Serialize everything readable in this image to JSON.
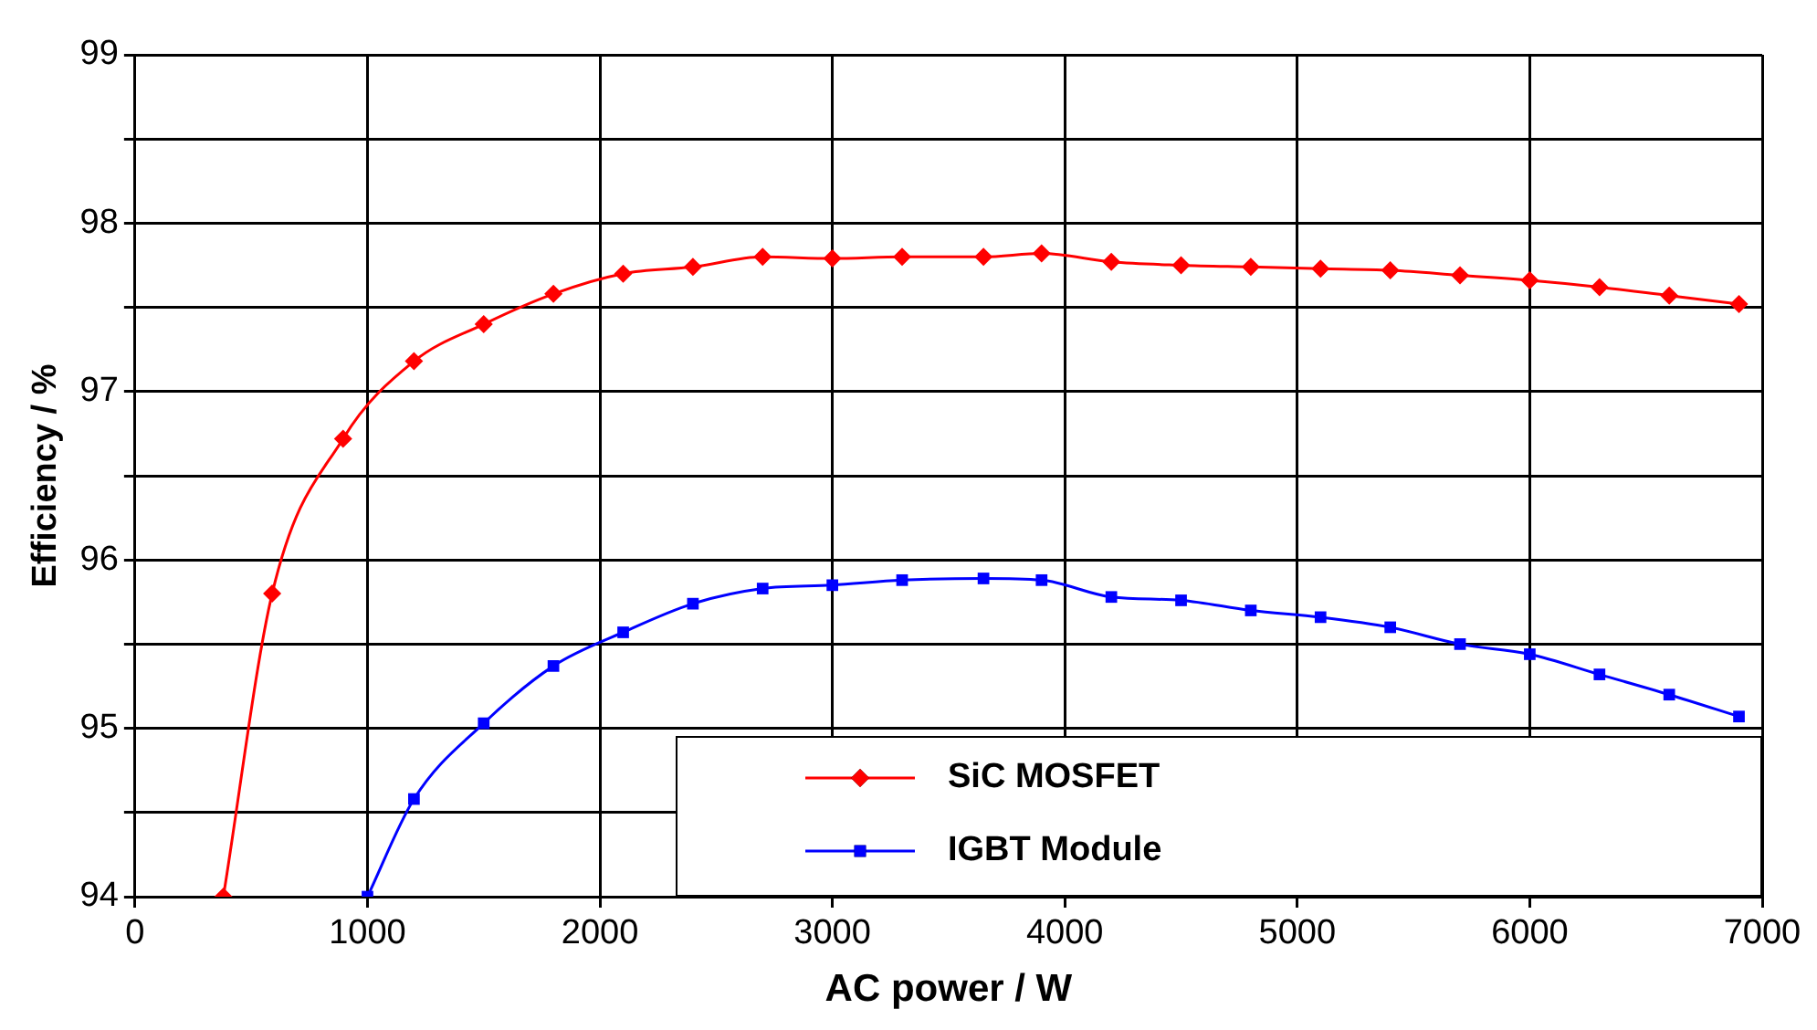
{
  "chart_data": {
    "type": "line",
    "xlabel": "AC power / W",
    "ylabel": "Efficiency / %",
    "xlim": [
      0,
      7000
    ],
    "xticks": [
      0,
      1000,
      2000,
      3000,
      4000,
      5000,
      6000,
      7000
    ],
    "ylim": [
      94,
      99
    ],
    "yticks": [
      94,
      {
        "value": 94.5,
        "label": null
      },
      95,
      {
        "value": 95.5,
        "label": null
      },
      96,
      {
        "value": 96.5,
        "label": null
      },
      97,
      {
        "value": 97.5,
        "label": null
      },
      98,
      {
        "value": 98.5,
        "label": null
      },
      99
    ],
    "grid": true,
    "legend": "bottom right",
    "line_style": "solid",
    "series": [
      {
        "name": "SiC MOSFET",
        "color": "#ff0000",
        "marker": "diamond",
        "x": [
          380,
          590,
          895,
          1200,
          1500,
          1800,
          2100,
          2400,
          2700,
          3000,
          3300,
          3650,
          3900,
          4200,
          4500,
          4800,
          5100,
          5400,
          5700,
          6000,
          6300,
          6600,
          6900
        ],
        "values": [
          94.0,
          95.8,
          96.72,
          97.18,
          97.4,
          97.58,
          97.7,
          97.74,
          97.8,
          97.79,
          97.8,
          97.8,
          97.82,
          97.77,
          97.75,
          97.74,
          97.73,
          97.72,
          97.69,
          97.66,
          97.62,
          97.57,
          97.52
        ]
      },
      {
        "name": "IGBT Module",
        "color": "#0000ff",
        "marker": "square",
        "x": [
          1000,
          1200,
          1500,
          1800,
          2100,
          2400,
          2700,
          3000,
          3300,
          3650,
          3900,
          4200,
          4500,
          4800,
          5100,
          5400,
          5700,
          6000,
          6300,
          6600,
          6900
        ],
        "values": [
          94.0,
          94.58,
          95.03,
          95.37,
          95.57,
          95.74,
          95.83,
          95.85,
          95.88,
          95.89,
          95.88,
          95.78,
          95.76,
          95.7,
          95.66,
          95.6,
          95.5,
          95.44,
          95.32,
          95.2,
          95.07
        ]
      }
    ]
  }
}
